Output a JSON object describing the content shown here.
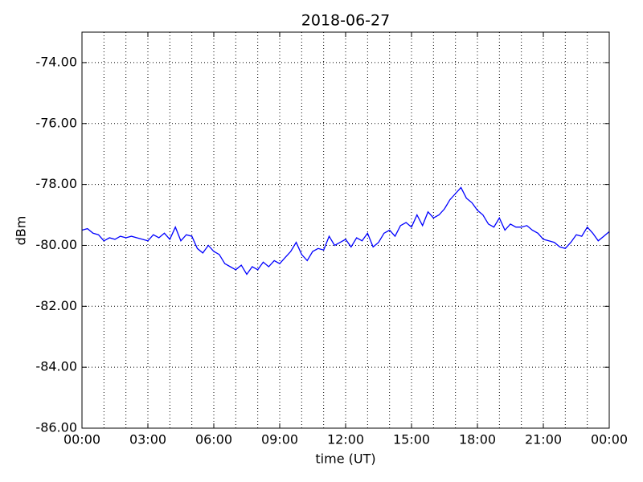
{
  "chart_data": {
    "type": "line",
    "title": "2018-06-27",
    "xlabel": "time (UT)",
    "ylabel": "dBm",
    "color": "#0000ff",
    "x": [
      0,
      0.25,
      0.5,
      0.75,
      1,
      1.25,
      1.5,
      1.75,
      2,
      2.25,
      2.5,
      2.75,
      3,
      3.25,
      3.5,
      3.75,
      4,
      4.25,
      4.5,
      4.75,
      5,
      5.25,
      5.5,
      5.75,
      6,
      6.25,
      6.5,
      6.75,
      7,
      7.25,
      7.5,
      7.75,
      8,
      8.25,
      8.5,
      8.75,
      9,
      9.25,
      9.5,
      9.75,
      10,
      10.25,
      10.5,
      10.75,
      11,
      11.25,
      11.5,
      11.75,
      12,
      12.25,
      12.5,
      12.75,
      13,
      13.25,
      13.5,
      13.75,
      14,
      14.25,
      14.5,
      14.75,
      15,
      15.25,
      15.5,
      15.75,
      16,
      16.25,
      16.5,
      16.75,
      17,
      17.25,
      17.5,
      17.75,
      18,
      18.25,
      18.5,
      18.75,
      19,
      19.25,
      19.5,
      19.75,
      20,
      20.25,
      20.5,
      20.75,
      21,
      21.25,
      21.5,
      21.75,
      22,
      22.25,
      22.5,
      22.75,
      23,
      23.25,
      23.5,
      23.75,
      24
    ],
    "values": [
      -79.5,
      -79.45,
      -79.6,
      -79.65,
      -79.85,
      -79.75,
      -79.8,
      -79.7,
      -79.75,
      -79.7,
      -79.75,
      -79.8,
      -79.85,
      -79.65,
      -79.75,
      -79.6,
      -79.8,
      -79.4,
      -79.85,
      -79.65,
      -79.7,
      -80.1,
      -80.25,
      -80.0,
      -80.2,
      -80.3,
      -80.6,
      -80.7,
      -80.8,
      -80.65,
      -80.95,
      -80.7,
      -80.8,
      -80.55,
      -80.7,
      -80.5,
      -80.6,
      -80.4,
      -80.2,
      -79.9,
      -80.3,
      -80.5,
      -80.2,
      -80.1,
      -80.15,
      -79.7,
      -80.0,
      -79.9,
      -79.8,
      -80.05,
      -79.75,
      -79.85,
      -79.6,
      -80.05,
      -79.9,
      -79.6,
      -79.5,
      -79.7,
      -79.35,
      -79.25,
      -79.4,
      -79.0,
      -79.35,
      -78.9,
      -79.1,
      -79.0,
      -78.8,
      -78.5,
      -78.3,
      -78.1,
      -78.45,
      -78.6,
      -78.85,
      -79.0,
      -79.3,
      -79.4,
      -79.1,
      -79.5,
      -79.3,
      -79.4,
      -79.4,
      -79.35,
      -79.5,
      -79.6,
      -79.8,
      -79.85,
      -79.9,
      -80.05,
      -80.1,
      -79.9,
      -79.65,
      -79.7,
      -79.4,
      -79.6,
      -79.85,
      -79.7,
      -79.55
    ],
    "xlim": [
      0,
      24
    ],
    "xticks": [
      {
        "value": 0,
        "label": "00:00"
      },
      {
        "value": 3,
        "label": "03:00"
      },
      {
        "value": 6,
        "label": "06:00"
      },
      {
        "value": 9,
        "label": "09:00"
      },
      {
        "value": 12,
        "label": "12:00"
      },
      {
        "value": 15,
        "label": "15:00"
      },
      {
        "value": 18,
        "label": "18:00"
      },
      {
        "value": 21,
        "label": "21:00"
      },
      {
        "value": 24,
        "label": "00:00"
      }
    ],
    "xminorticks": [
      1,
      2,
      4,
      5,
      7,
      8,
      10,
      11,
      13,
      14,
      16,
      17,
      19,
      20,
      22,
      23
    ],
    "ylim": [
      -86,
      -73
    ],
    "yticks": [
      {
        "value": -86,
        "label": "-86.00"
      },
      {
        "value": -84,
        "label": "-84.00"
      },
      {
        "value": -82,
        "label": "-82.00"
      },
      {
        "value": -80,
        "label": "-80.00"
      },
      {
        "value": -78,
        "label": "-78.00"
      },
      {
        "value": -76,
        "label": "-76.00"
      },
      {
        "value": -74,
        "label": "-74.00"
      }
    ],
    "grid": true
  }
}
